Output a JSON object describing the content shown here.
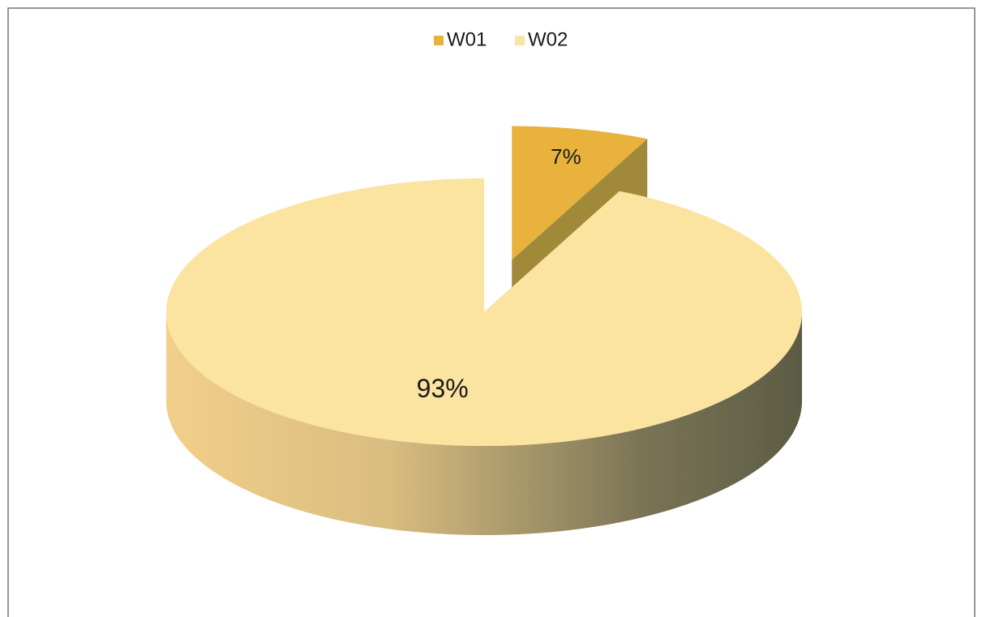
{
  "chart_data": {
    "type": "pie",
    "pie_style": "3d",
    "categories": [
      "W01",
      "W02"
    ],
    "values": [
      7,
      93
    ],
    "value_labels": [
      "7%",
      "93%"
    ],
    "colors": [
      "#e8b23c",
      "#fbe3a0"
    ],
    "exploded": [
      true,
      false
    ],
    "legend": "top"
  }
}
